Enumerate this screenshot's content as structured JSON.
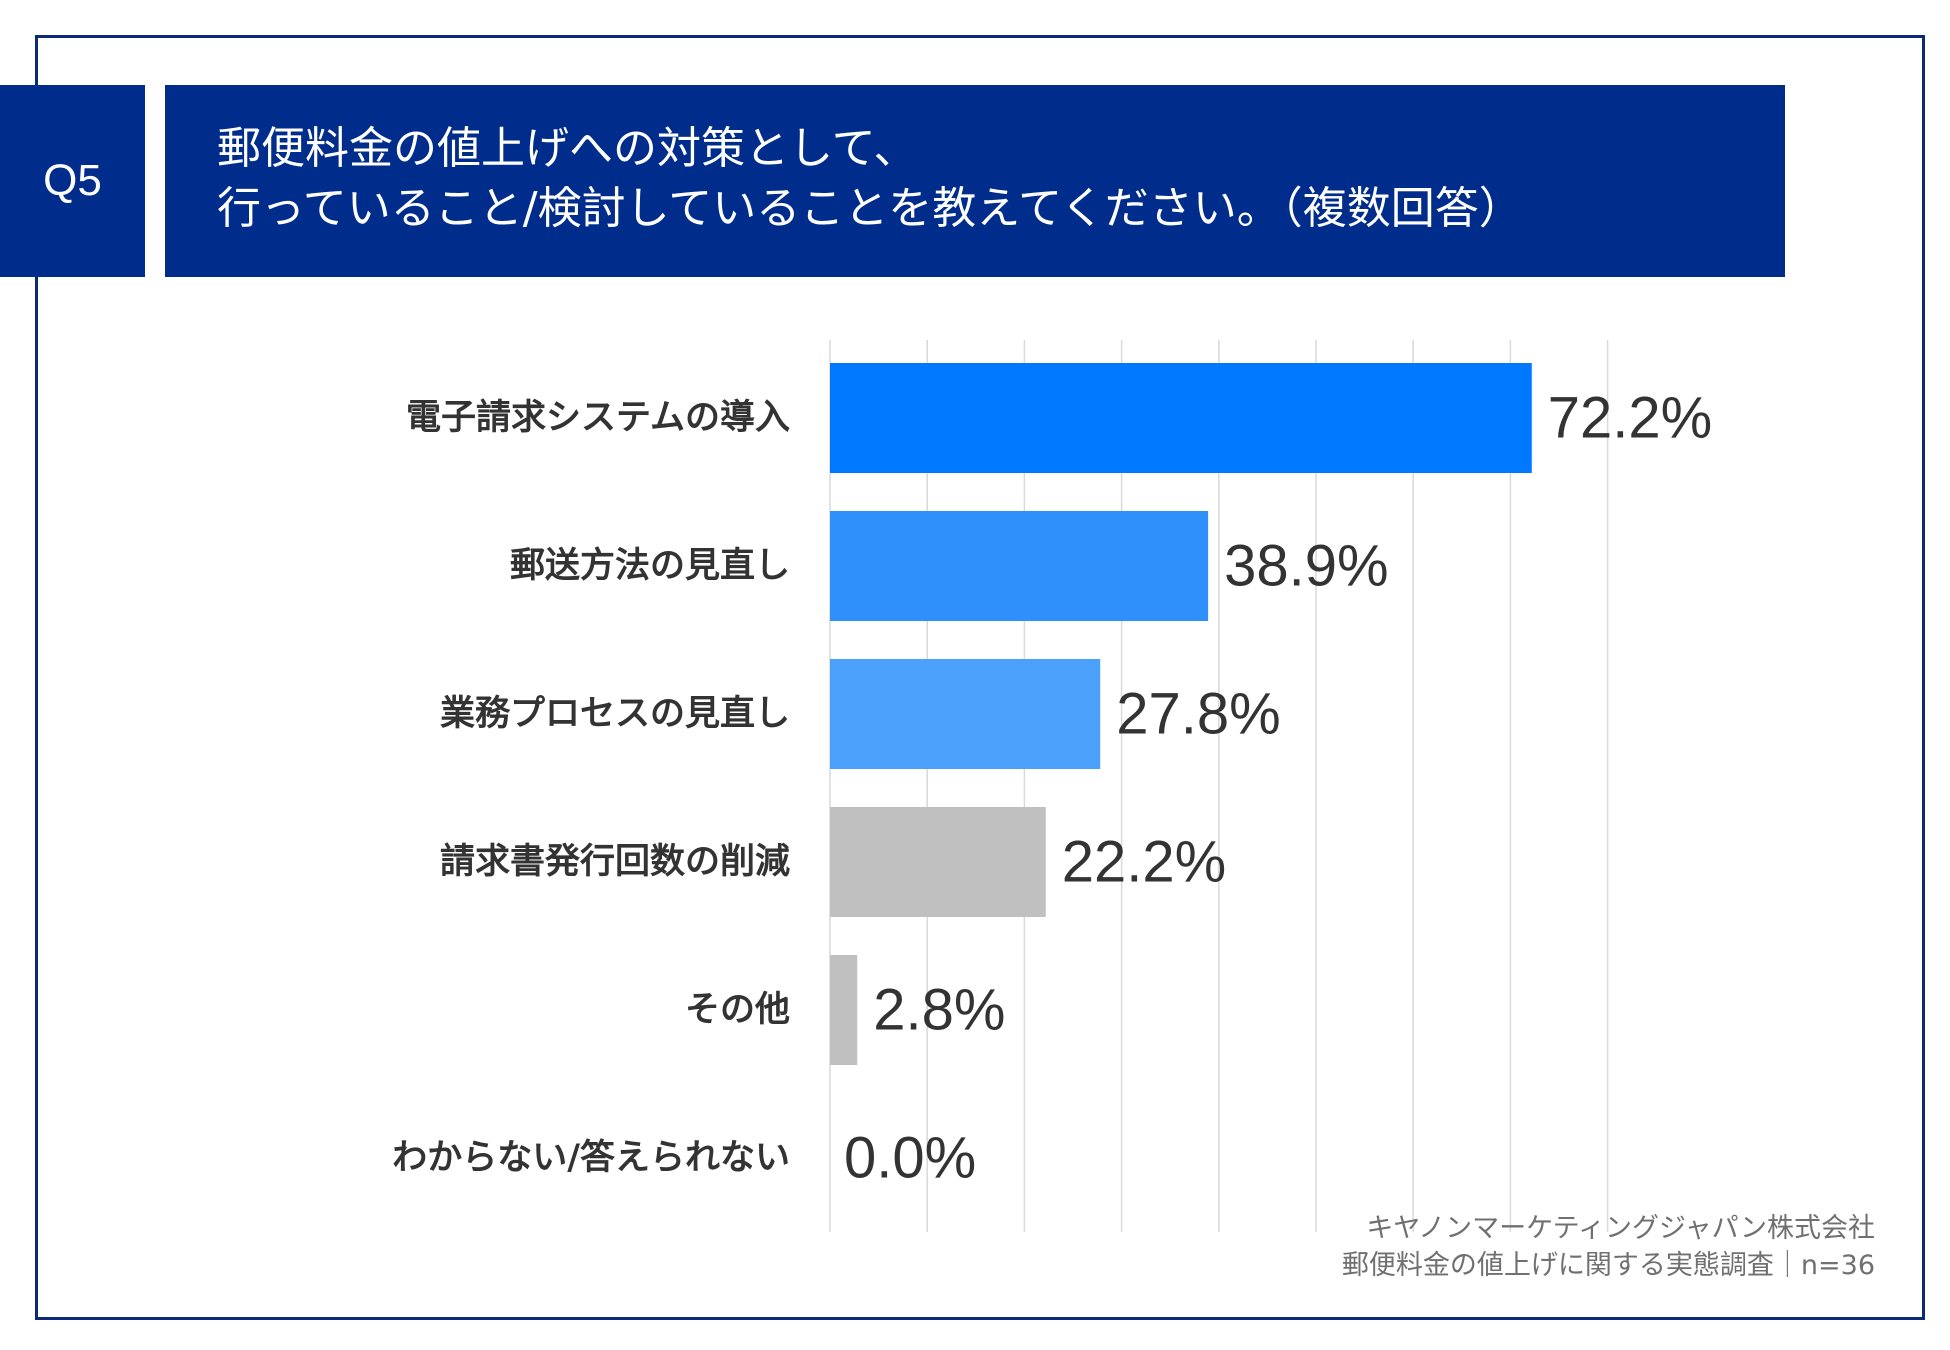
{
  "badge": "Q5",
  "title": {
    "line1": "郵便料金の値上げへの対策として、",
    "line2": "行っていること/検討していることを教えてください。（複数回答）"
  },
  "footer": {
    "company": "キヤノンマーケティングジャパン株式会社",
    "survey": "郵便料金の値上げに関する実態調査｜n=36"
  },
  "colors": {
    "navy": "#002d8c",
    "bar_primary": "#0078ff",
    "bar_secondary": "#2f8ffb",
    "bar_tertiary": "#4aa0fb",
    "bar_gray": "#c0c0c0",
    "grid": "#d9d9d9"
  },
  "chart_data": {
    "type": "bar",
    "orientation": "horizontal",
    "categories": [
      "電子請求システムの導入",
      "郵送方法の見直し",
      "業務プロセスの見直し",
      "請求書発行回数の削減",
      "その他",
      "わからない/答えられない"
    ],
    "values": [
      72.2,
      38.9,
      27.8,
      22.2,
      2.8,
      0.0
    ],
    "labels": [
      "72.2%",
      "38.9%",
      "27.8%",
      "22.2%",
      "2.8%",
      "0.0%"
    ],
    "bar_colors": [
      "#0078ff",
      "#2f8ffb",
      "#4aa0fb",
      "#c0c0c0",
      "#c0c0c0",
      "#c0c0c0"
    ],
    "xlim": [
      0,
      80
    ],
    "grid": true,
    "unit": "%"
  }
}
